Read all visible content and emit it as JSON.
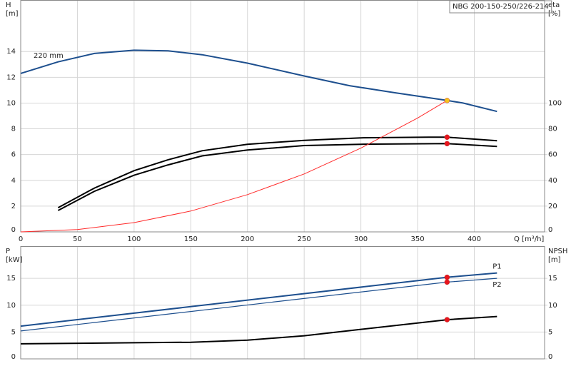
{
  "chart_data": [
    {
      "type": "line",
      "title": "NBG 200-150-250/226-214",
      "xlabel": "Q [m³/h]",
      "ylabel": [
        "H",
        "[m]"
      ],
      "y2label": [
        "eta",
        "[%]"
      ],
      "xlim": [
        0,
        462
      ],
      "xticks": [
        0,
        50,
        100,
        150,
        200,
        250,
        300,
        350,
        400
      ],
      "ylim": [
        0,
        18
      ],
      "yticks": [
        0,
        2,
        4,
        6,
        8,
        10,
        12,
        14
      ],
      "y2lim": [
        0,
        180
      ],
      "y2ticks": [
        0,
        20,
        40,
        60,
        80,
        100
      ],
      "grid": true,
      "series": [
        {
          "name": "220 mm",
          "color": "#1d4f8e",
          "width": 2,
          "x": [
            0,
            33,
            65,
            100,
            130,
            160,
            200,
            250,
            290,
            330,
            376,
            390,
            420
          ],
          "values": [
            12.3,
            13.2,
            13.85,
            14.1,
            14.05,
            13.75,
            13.1,
            12.1,
            11.35,
            10.8,
            10.2,
            10.0,
            9.35
          ]
        },
        {
          "color": "#000000",
          "width": 2,
          "axis": "y2",
          "x": [
            33,
            65,
            100,
            130,
            160,
            200,
            250,
            300,
            360,
            376,
            420
          ],
          "values": [
            18.8,
            34,
            47.5,
            56,
            63,
            68,
            71,
            73,
            73.5,
            73.5,
            70.7
          ]
        },
        {
          "color": "#000000",
          "width": 2,
          "axis": "y2",
          "x": [
            33,
            65,
            100,
            130,
            160,
            200,
            250,
            300,
            376,
            420
          ],
          "values": [
            16.6,
            31.5,
            44,
            52,
            59,
            63.5,
            67,
            68,
            68.5,
            66.3
          ]
        },
        {
          "color": "#ff2a2a",
          "width": 1,
          "x": [
            0,
            50,
            100,
            150,
            200,
            250,
            300,
            350,
            376
          ],
          "values": [
            0,
            0.18,
            0.72,
            1.62,
            2.89,
            4.5,
            6.5,
            8.84,
            10.2
          ]
        }
      ],
      "markers": [
        {
          "x": 376,
          "y": 10.2,
          "color": "#f7c21b"
        },
        {
          "x": 376,
          "y": 73.5,
          "axis": "y2",
          "color": "#e8141c"
        },
        {
          "x": 376,
          "y": 68.5,
          "axis": "y2",
          "color": "#e8141c"
        }
      ]
    },
    {
      "type": "line",
      "ylabel": [
        "P",
        "[kW]"
      ],
      "y2label": [
        "NPSH",
        "[m]"
      ],
      "xlim": [
        0,
        462
      ],
      "xticks": [
        0,
        50,
        100,
        150,
        200,
        250,
        300,
        350,
        400
      ],
      "ylim": [
        0,
        21
      ],
      "yticks": [
        0,
        5,
        10,
        15
      ],
      "y2lim": [
        0,
        21
      ],
      "y2ticks": [
        0,
        5,
        10,
        15
      ],
      "grid": true,
      "series": [
        {
          "name": "P1",
          "color": "#1d4f8e",
          "width": 2,
          "x": [
            0,
            376,
            420
          ],
          "values": [
            6.1,
            15.2,
            16.0
          ]
        },
        {
          "name": "P2",
          "color": "#1d4f8e",
          "width": 1.2,
          "x": [
            0,
            376,
            420
          ],
          "values": [
            5.2,
            14.3,
            15.0
          ]
        },
        {
          "color": "#000000",
          "width": 2,
          "axis": "y2",
          "x": [
            0,
            100,
            150,
            200,
            250,
            300,
            376,
            420
          ],
          "values": [
            2.8,
            3.0,
            3.1,
            3.5,
            4.3,
            5.5,
            7.3,
            7.9
          ]
        }
      ],
      "markers": [
        {
          "x": 376,
          "y": 15.2,
          "color": "#e8141c"
        },
        {
          "x": 376,
          "y": 14.3,
          "color": "#e8141c"
        },
        {
          "x": 376,
          "y": 7.3,
          "axis": "y2",
          "color": "#e8141c"
        }
      ]
    }
  ]
}
